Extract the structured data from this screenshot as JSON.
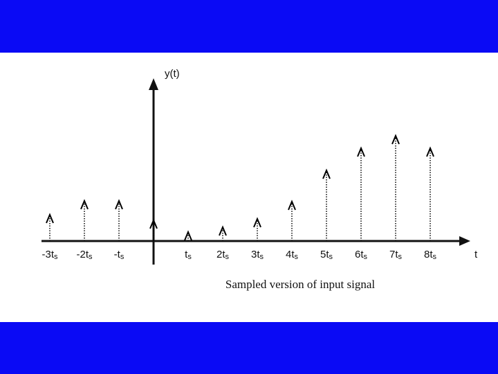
{
  "chart_data": {
    "type": "stem",
    "y_label": "y(t)",
    "x_label": "t",
    "caption": "Sampled version of input signal",
    "categories": [
      "-3ts",
      "-2ts",
      "-ts",
      null,
      "ts",
      "2ts",
      "3ts",
      "4ts",
      "5ts",
      "6ts",
      "7ts",
      "8ts"
    ],
    "values": [
      38,
      58,
      58,
      30,
      13,
      20,
      32,
      57,
      102,
      134,
      152,
      134
    ],
    "ylim": [
      0,
      240
    ],
    "color": "#000000"
  }
}
